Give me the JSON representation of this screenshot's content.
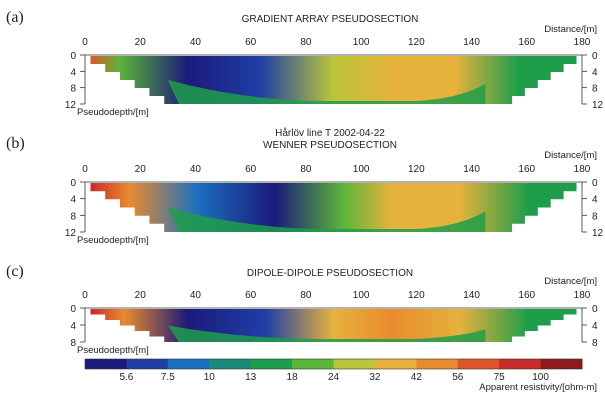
{
  "panels": [
    {
      "letter": "(a)",
      "title_lines": [
        "GRADIENT ARRAY PSEUDOSECTION"
      ],
      "x_label": "Distance/[m]",
      "y_label": "Pseudodepth/[m]",
      "x_ticks": [
        "0",
        "20",
        "40",
        "60",
        "80",
        "100",
        "120",
        "140",
        "160",
        "180"
      ],
      "y_ticks": [
        "0",
        "4",
        "8",
        "12"
      ],
      "y_max": 12
    },
    {
      "letter": "(b)",
      "title_lines": [
        "Hårlöv line T 2002-04-22",
        "WENNER PSEUDOSECTION"
      ],
      "x_label": "Distance/[m]",
      "y_label": "Pseudodepth/[m]",
      "x_ticks": [
        "0",
        "20",
        "40",
        "60",
        "80",
        "100",
        "120",
        "140",
        "160",
        "180"
      ],
      "y_ticks": [
        "0",
        "4",
        "8",
        "12"
      ],
      "y_max": 12
    },
    {
      "letter": "(c)",
      "title_lines": [
        "DIPOLE-DIPOLE PSEUDOSECTION"
      ],
      "x_label": "Distance/[m]",
      "y_label": "Pseudodepth/[m]",
      "x_ticks": [
        "0",
        "20",
        "40",
        "60",
        "80",
        "100",
        "120",
        "140",
        "160",
        "180"
      ],
      "y_ticks": [
        "0",
        "4",
        "8"
      ],
      "y_max": 8
    }
  ],
  "colorbar": {
    "label": "Apparent resistivity/[ohm-m]",
    "ticks": [
      "5.6",
      "7.5",
      "10",
      "13",
      "18",
      "24",
      "32",
      "42",
      "56",
      "75",
      "100"
    ],
    "colors": [
      "#1b1a7a",
      "#1f3fa6",
      "#1b6fbf",
      "#1a8a7a",
      "#1e9e4a",
      "#5db43a",
      "#b9c53a",
      "#e6b23c",
      "#e88b2e",
      "#e0552a",
      "#c92a2a",
      "#8e1a1a"
    ]
  },
  "chart_data": [
    {
      "type": "heatmap",
      "title": "GRADIENT ARRAY PSEUDOSECTION",
      "xlabel": "Distance/[m]",
      "ylabel": "Pseudodepth/[m]",
      "xlim": [
        0,
        180
      ],
      "ylim": [
        0,
        12
      ],
      "x_ticks": [
        0,
        20,
        40,
        60,
        80,
        100,
        120,
        140,
        160,
        180
      ],
      "y_ticks": [
        0,
        4,
        8,
        12
      ],
      "colorbar_units": "Apparent resistivity/[ohm-m]",
      "colorbar_levels": [
        5.6,
        7.5,
        10,
        13,
        18,
        24,
        32,
        42,
        56,
        75,
        100
      ]
    },
    {
      "type": "heatmap",
      "title": "Hårlöv line T 2002-04-22 WENNER PSEUDOSECTION",
      "xlabel": "Distance/[m]",
      "ylabel": "Pseudodepth/[m]",
      "xlim": [
        0,
        180
      ],
      "ylim": [
        0,
        12
      ],
      "x_ticks": [
        0,
        20,
        40,
        60,
        80,
        100,
        120,
        140,
        160,
        180
      ],
      "y_ticks": [
        0,
        4,
        8,
        12
      ],
      "colorbar_units": "Apparent resistivity/[ohm-m]",
      "colorbar_levels": [
        5.6,
        7.5,
        10,
        13,
        18,
        24,
        32,
        42,
        56,
        75,
        100
      ]
    },
    {
      "type": "heatmap",
      "title": "DIPOLE-DIPOLE PSEUDOSECTION",
      "xlabel": "Distance/[m]",
      "ylabel": "Pseudodepth/[m]",
      "xlim": [
        0,
        180
      ],
      "ylim": [
        0,
        8
      ],
      "x_ticks": [
        0,
        20,
        40,
        60,
        80,
        100,
        120,
        140,
        160,
        180
      ],
      "y_ticks": [
        0,
        4,
        8
      ],
      "colorbar_units": "Apparent resistivity/[ohm-m]",
      "colorbar_levels": [
        5.6,
        7.5,
        10,
        13,
        18,
        24,
        32,
        42,
        56,
        75,
        100
      ]
    }
  ]
}
